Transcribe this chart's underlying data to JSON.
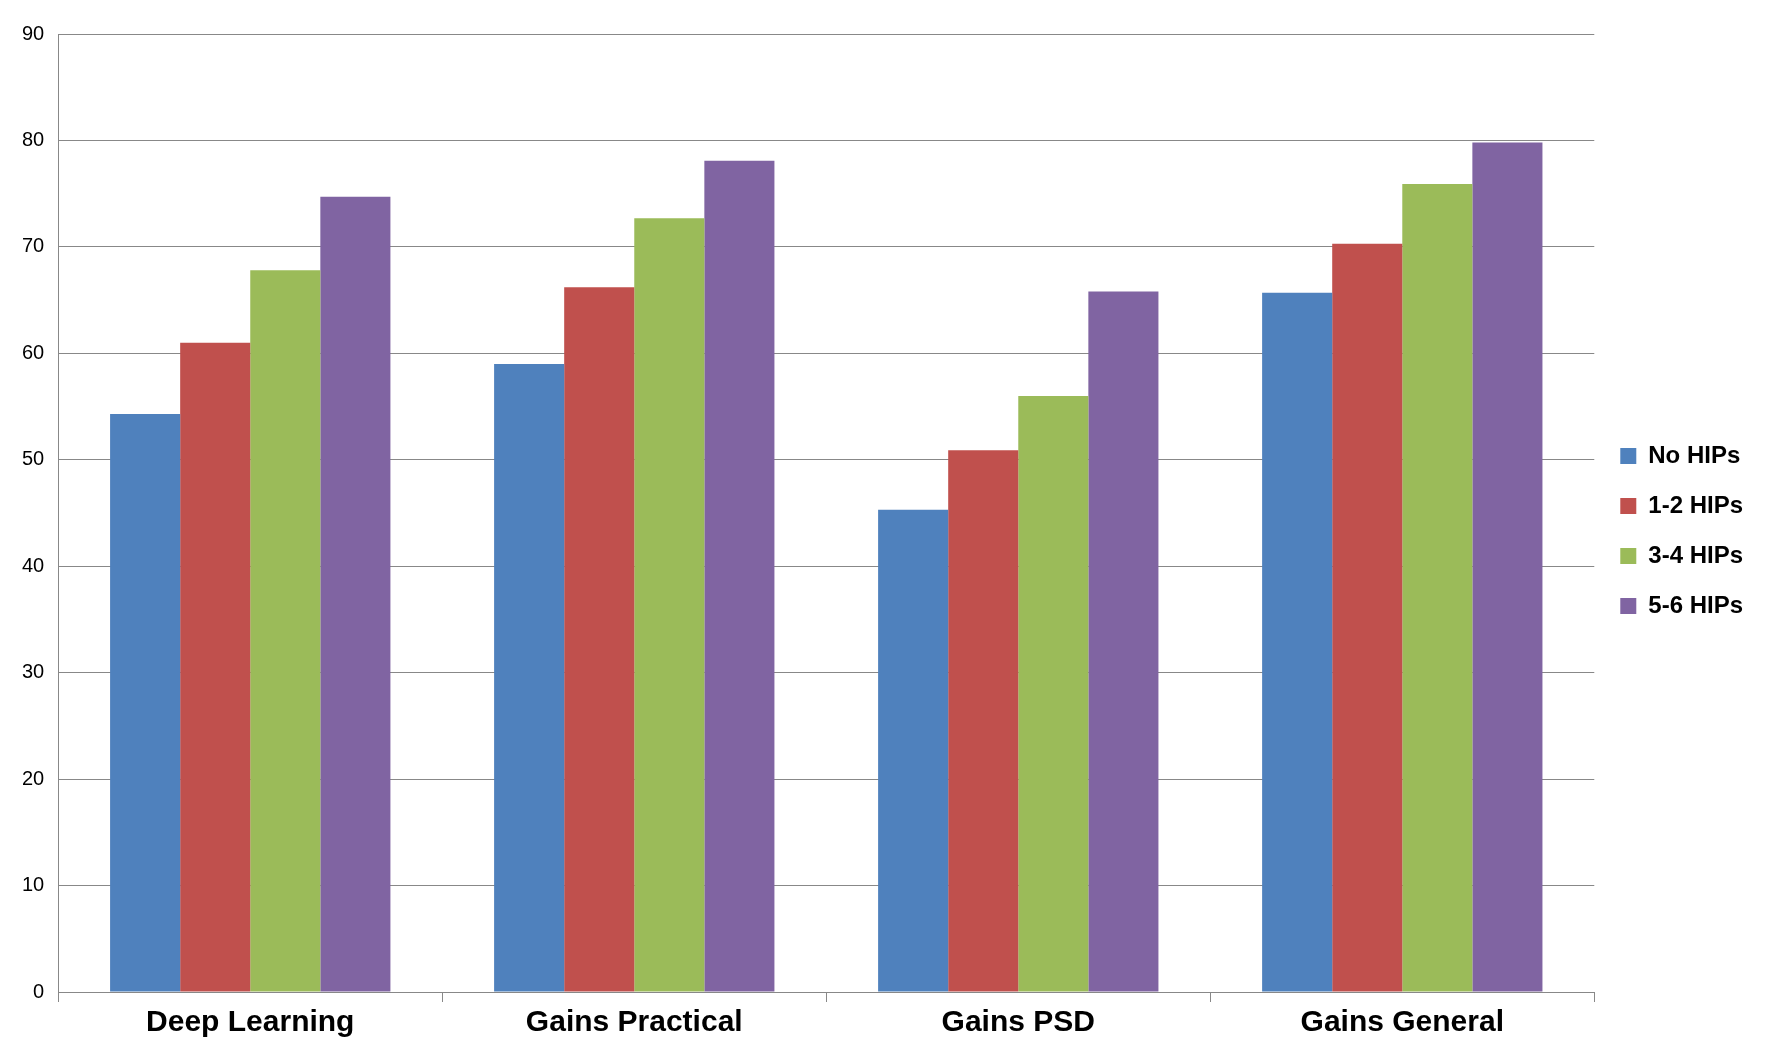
{
  "chart_data": {
    "type": "bar",
    "categories": [
      "Deep Learning",
      "Gains Practical",
      "Gains PSD",
      "Gains General"
    ],
    "series": [
      {
        "name": "No HIPs",
        "color": "#4f81bd",
        "values": [
          54.3,
          59.0,
          45.3,
          65.7
        ]
      },
      {
        "name": "1-2 HIPs",
        "color": "#c0504d",
        "values": [
          61.0,
          66.2,
          50.9,
          70.3
        ]
      },
      {
        "name": "3-4 HIPs",
        "color": "#9bbb59",
        "values": [
          67.8,
          72.7,
          56.0,
          75.9
        ]
      },
      {
        "name": "5-6 HIPs",
        "color": "#8064a2",
        "values": [
          74.7,
          78.1,
          65.8,
          79.8
        ]
      }
    ],
    "ylim": [
      0,
      90
    ],
    "yticks": [
      0,
      10,
      20,
      30,
      40,
      50,
      60,
      70,
      80,
      90
    ],
    "grid": "y",
    "legend": "right"
  }
}
